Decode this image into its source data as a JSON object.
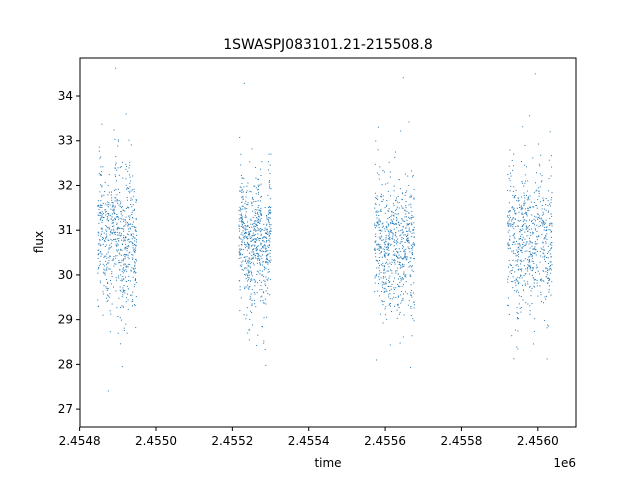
{
  "chart_data": {
    "type": "scatter",
    "title": "1SWASPJ083101.21-215508.8",
    "xlabel": "time",
    "ylabel": "flux",
    "x_offset_label": "1e6",
    "xlim": [
      2454801,
      2456100
    ],
    "ylim": [
      26.6,
      34.85
    ],
    "x_ticks": [
      2454800,
      2455000,
      2455200,
      2455400,
      2455600,
      2455800,
      2456000
    ],
    "x_tick_labels": [
      "2.4548",
      "2.4550",
      "2.4552",
      "2.4554",
      "2.4556",
      "2.4558",
      "2.4560"
    ],
    "y_ticks": [
      27,
      28,
      29,
      30,
      31,
      32,
      33,
      34
    ],
    "y_tick_labels": [
      "27",
      "28",
      "29",
      "30",
      "31",
      "32",
      "33",
      "34"
    ],
    "grid": false,
    "marker_color": "#1f77b4",
    "observing_seasons": [
      {
        "x_start": 2454846,
        "x_end": 2454948,
        "flux_median": 30.8,
        "flux_spread": 0.75
      },
      {
        "x_start": 2455216,
        "x_end": 2455300,
        "flux_median": 30.7,
        "flux_spread": 0.7
      },
      {
        "x_start": 2455571,
        "x_end": 2455676,
        "flux_median": 30.6,
        "flux_spread": 0.75
      },
      {
        "x_start": 2455919,
        "x_end": 2456036,
        "flux_median": 30.8,
        "flux_spread": 0.75
      }
    ]
  }
}
